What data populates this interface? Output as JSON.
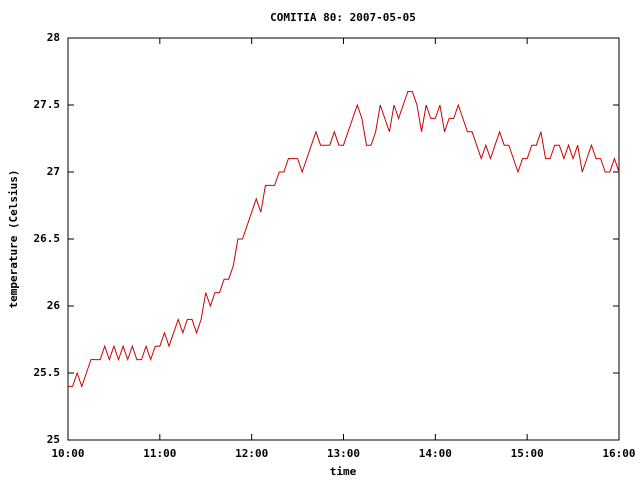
{
  "chart_data": {
    "type": "line",
    "title": "COMITIA 80: 2007-05-05",
    "xlabel": "time",
    "ylabel": "temperature (Celsius)",
    "color": "#cc0000",
    "x": [
      "10:00",
      "10:03",
      "10:06",
      "10:09",
      "10:12",
      "10:15",
      "10:18",
      "10:21",
      "10:24",
      "10:27",
      "10:30",
      "10:33",
      "10:36",
      "10:39",
      "10:42",
      "10:45",
      "10:48",
      "10:51",
      "10:54",
      "10:57",
      "11:00",
      "11:03",
      "11:06",
      "11:09",
      "11:12",
      "11:15",
      "11:18",
      "11:21",
      "11:24",
      "11:27",
      "11:30",
      "11:33",
      "11:36",
      "11:39",
      "11:42",
      "11:45",
      "11:48",
      "11:51",
      "11:54",
      "11:57",
      "12:00",
      "12:03",
      "12:06",
      "12:09",
      "12:12",
      "12:15",
      "12:18",
      "12:21",
      "12:24",
      "12:27",
      "12:30",
      "12:33",
      "12:36",
      "12:39",
      "12:42",
      "12:45",
      "12:48",
      "12:51",
      "12:54",
      "12:57",
      "13:00",
      "13:03",
      "13:06",
      "13:09",
      "13:12",
      "13:15",
      "13:18",
      "13:21",
      "13:24",
      "13:27",
      "13:30",
      "13:33",
      "13:36",
      "13:39",
      "13:42",
      "13:45",
      "13:48",
      "13:51",
      "13:54",
      "13:57",
      "14:00",
      "14:03",
      "14:06",
      "14:09",
      "14:12",
      "14:15",
      "14:18",
      "14:21",
      "14:24",
      "14:27",
      "14:30",
      "14:33",
      "14:36",
      "14:39",
      "14:42",
      "14:45",
      "14:48",
      "14:51",
      "14:54",
      "14:57",
      "15:00",
      "15:03",
      "15:06",
      "15:09",
      "15:12",
      "15:15",
      "15:18",
      "15:21",
      "15:24",
      "15:27",
      "15:30",
      "15:33",
      "15:36",
      "15:39",
      "15:42",
      "15:45",
      "15:48",
      "15:51",
      "15:54",
      "15:57",
      "16:00"
    ],
    "values": [
      25.4,
      25.4,
      25.5,
      25.4,
      25.5,
      25.6,
      25.6,
      25.6,
      25.7,
      25.6,
      25.7,
      25.6,
      25.7,
      25.6,
      25.7,
      25.6,
      25.6,
      25.7,
      25.6,
      25.7,
      25.7,
      25.8,
      25.7,
      25.8,
      25.9,
      25.8,
      25.9,
      25.9,
      25.8,
      25.9,
      26.1,
      26.0,
      26.1,
      26.1,
      26.2,
      26.2,
      26.3,
      26.5,
      26.5,
      26.6,
      26.7,
      26.8,
      26.7,
      26.9,
      26.9,
      26.9,
      27.0,
      27.0,
      27.1,
      27.1,
      27.1,
      27.0,
      27.1,
      27.2,
      27.3,
      27.2,
      27.2,
      27.2,
      27.3,
      27.2,
      27.2,
      27.3,
      27.4,
      27.5,
      27.4,
      27.2,
      27.2,
      27.3,
      27.5,
      27.4,
      27.3,
      27.5,
      27.4,
      27.5,
      27.6,
      27.6,
      27.5,
      27.3,
      27.5,
      27.4,
      27.4,
      27.5,
      27.3,
      27.4,
      27.4,
      27.5,
      27.4,
      27.3,
      27.3,
      27.2,
      27.1,
      27.2,
      27.1,
      27.2,
      27.3,
      27.2,
      27.2,
      27.1,
      27.0,
      27.1,
      27.1,
      27.2,
      27.2,
      27.3,
      27.1,
      27.1,
      27.2,
      27.2,
      27.1,
      27.2,
      27.1,
      27.2,
      27.0,
      27.1,
      27.2,
      27.1,
      27.1,
      27.0,
      27.0,
      27.1,
      27.0
    ],
    "xlim": [
      "10:00",
      "16:00"
    ],
    "xticks": [
      "10:00",
      "11:00",
      "12:00",
      "13:00",
      "14:00",
      "15:00",
      "16:00"
    ],
    "ylim": [
      25,
      28
    ],
    "yticks": [
      25,
      25.5,
      26,
      26.5,
      27,
      27.5,
      28
    ],
    "grid": false
  }
}
